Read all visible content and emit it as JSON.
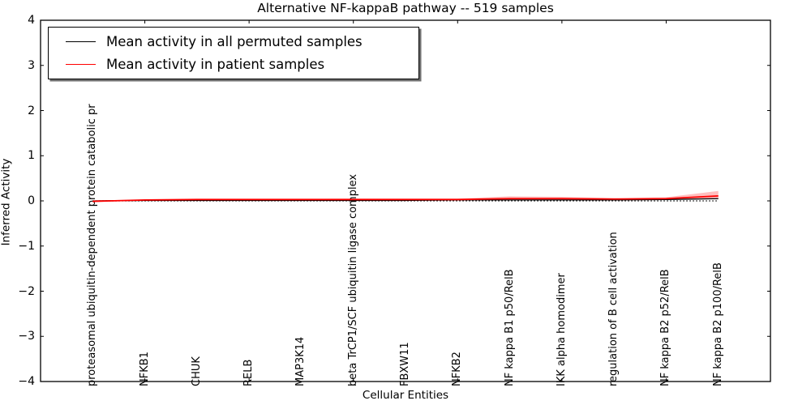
{
  "chart_data": {
    "type": "line",
    "title": "Alternative NF-kappaB pathway -- 519 samples",
    "xlabel": "Cellular Entities",
    "ylabel": "Inferred Activity",
    "xlim": [
      0,
      14
    ],
    "ylim": [
      -4,
      4
    ],
    "grid": false,
    "legend_position": "upper left",
    "zero_reference_line": {
      "y": 0,
      "style": "dotted",
      "color": "#000000"
    },
    "yticks": [
      {
        "value": 4,
        "label": "4"
      },
      {
        "value": 3,
        "label": "3"
      },
      {
        "value": 2,
        "label": "2"
      },
      {
        "value": 1,
        "label": "1"
      },
      {
        "value": 0,
        "label": "0"
      },
      {
        "value": -1,
        "label": "−1"
      },
      {
        "value": -2,
        "label": "−2"
      },
      {
        "value": -3,
        "label": "−3"
      },
      {
        "value": -4,
        "label": "−4"
      }
    ],
    "xticks_major": [
      2,
      4,
      6,
      8,
      10,
      12
    ],
    "category_positions": [
      1,
      2,
      3,
      4,
      5,
      6,
      7,
      8,
      9,
      10,
      11,
      12,
      13
    ],
    "categories": [
      "proteasomal ubiquitin-dependent protein catabolic pr",
      "NFKB1",
      "CHUK",
      "RELB",
      "MAP3K14",
      "beta TrCP1/SCF ubiquitin ligase complex",
      "FBXW11",
      "NFKB2",
      "NF kappa B1 p50/RelB",
      "IKK alpha homodimer",
      "regulation of B cell activation",
      "NF kappa B2 p52/RelB",
      "NF kappa B2 p100/RelB"
    ],
    "series": [
      {
        "name": "Mean activity in all permuted samples",
        "color": "#000000",
        "values": [
          0.0,
          0.01,
          0.01,
          0.01,
          0.01,
          0.01,
          0.01,
          0.02,
          0.02,
          0.02,
          0.02,
          0.03,
          0.05
        ]
      },
      {
        "name": "Mean activity in patient samples",
        "color": "#ff0000",
        "values": [
          -0.01,
          0.02,
          0.03,
          0.03,
          0.03,
          0.03,
          0.03,
          0.03,
          0.05,
          0.05,
          0.04,
          0.05,
          0.11
        ],
        "band_upper": [
          0.01,
          0.03,
          0.04,
          0.04,
          0.04,
          0.05,
          0.05,
          0.05,
          0.1,
          0.09,
          0.06,
          0.08,
          0.22
        ],
        "band_lower": [
          -0.02,
          0.0,
          0.01,
          0.02,
          0.02,
          0.02,
          0.02,
          0.02,
          0.02,
          0.02,
          0.02,
          0.03,
          0.04
        ],
        "band_opacity": 0.25
      }
    ]
  }
}
